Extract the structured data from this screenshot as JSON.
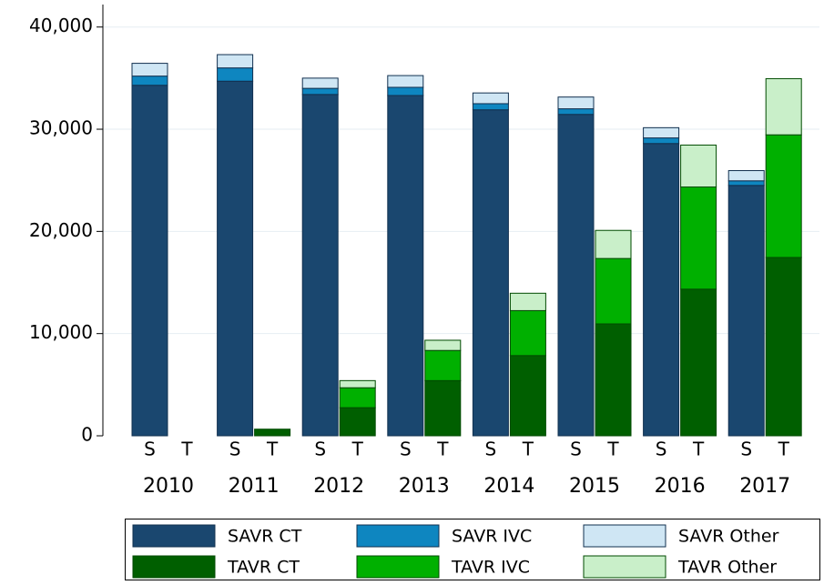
{
  "chart_data": {
    "type": "grouped-stacked-bar",
    "categories": [
      "2010",
      "2011",
      "2012",
      "2013",
      "2014",
      "2015",
      "2016",
      "2017"
    ],
    "stacks": [
      "S",
      "T"
    ],
    "series": [
      {
        "name": "SAVR CT",
        "stack": "S",
        "color": "#1a476f",
        "edge_color": "#12304f",
        "values": [
          34300,
          34700,
          33400,
          33300,
          31900,
          31450,
          28600,
          24500
        ]
      },
      {
        "name": "SAVR IVC",
        "stack": "S",
        "color": "#0e86c0",
        "edge_color": "#12304f",
        "values": [
          900,
          1300,
          600,
          800,
          600,
          550,
          550,
          450
        ]
      },
      {
        "name": "SAVR Other",
        "stack": "S",
        "color": "#cfe6f4",
        "edge_color": "#12304f",
        "values": [
          1250,
          1300,
          1000,
          1150,
          1050,
          1150,
          1000,
          1000
        ]
      },
      {
        "name": "TAVR CT",
        "stack": "T",
        "color": "#005f00",
        "edge_color": "#004a00",
        "values": [
          0,
          650,
          2750,
          5400,
          7850,
          10950,
          14350,
          17450
        ]
      },
      {
        "name": "TAVR IVC",
        "stack": "T",
        "color": "#00b000",
        "edge_color": "#004a00",
        "values": [
          0,
          0,
          1950,
          2950,
          4400,
          6400,
          10000,
          12000
        ]
      },
      {
        "name": "TAVR Other",
        "stack": "T",
        "color": "#c9efc9",
        "edge_color": "#004a00",
        "values": [
          0,
          0,
          700,
          1000,
          1700,
          2750,
          4100,
          5500
        ]
      }
    ],
    "ylim": [
      0,
      42200
    ],
    "yticks": [
      0,
      {
        "value": 10000,
        "label": "10,000"
      },
      {
        "value": 20000,
        "label": "20,000"
      },
      {
        "value": 30000,
        "label": "30,000"
      },
      {
        "value": 40000,
        "label": "40,000"
      }
    ],
    "grid": true,
    "legend": "bottom"
  }
}
